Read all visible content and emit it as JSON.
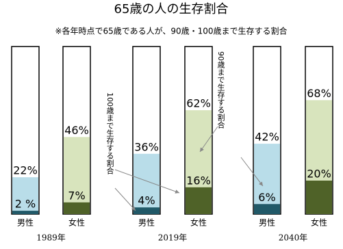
{
  "chart_data": {
    "type": "overlay-bar",
    "title": "65歳の人の生存割合",
    "subtitle": "※各年時点で65歳である人が、90歳・100歳まで生存する割合",
    "categories": [
      "男性",
      "女性",
      "男性",
      "女性",
      "男性",
      "女性"
    ],
    "groups": [
      "1989年",
      "2019年",
      "2040年"
    ],
    "ylim": [
      0,
      100
    ],
    "series": [
      {
        "values": [
          22,
          46,
          36,
          62,
          42,
          68
        ],
        "value_labels": [
          "22%",
          "46%",
          "36%",
          "62%",
          "42%",
          "68%"
        ],
        "colors": [
          "#b9dde9",
          "#d8e4bd",
          "#b9dde9",
          "#d8e4bd",
          "#b9dde9",
          "#d8e4bd"
        ]
      },
      {
        "values": [
          2,
          7,
          4,
          16,
          6,
          20
        ],
        "value_labels": [
          "2 %",
          "7%",
          "4%",
          "16%",
          "6%",
          "20%"
        ],
        "colors": [
          "#215968",
          "#4f6228",
          "#215968",
          "#4f6228",
          "#215968",
          "#4f6228"
        ]
      }
    ],
    "annotations": [
      "100歳まで生存する割合",
      "90歳まで生存する割合"
    ]
  }
}
